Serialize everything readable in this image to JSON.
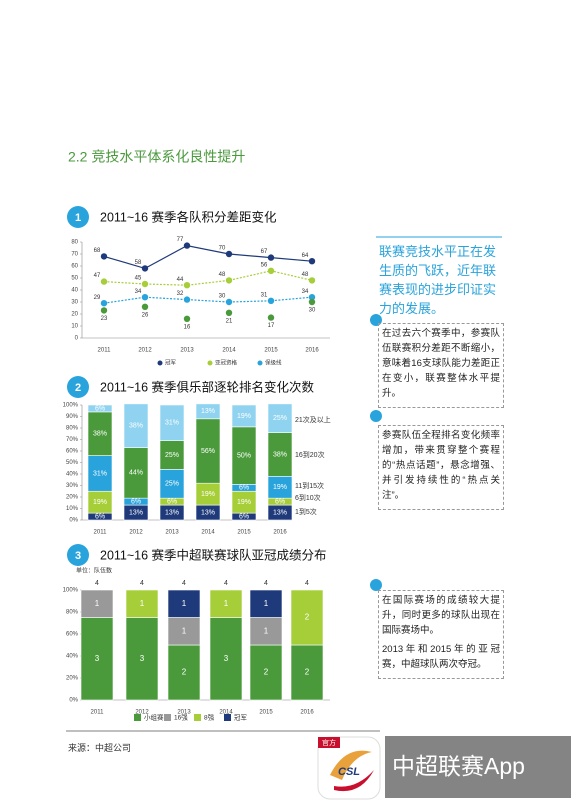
{
  "section_title": "2.2 竞技水平体系化良性提升",
  "charts": [
    {
      "type": "line",
      "badge": "1",
      "title": "2011~16 赛季各队积分差距变化",
      "categories": [
        "2011",
        "2012",
        "2013",
        "2014",
        "2015",
        "2016"
      ],
      "series": [
        {
          "name": "冠军",
          "color": "#1f3a7a",
          "values": [
            68,
            58,
            77,
            70,
            67,
            64
          ]
        },
        {
          "name": "亚冠资格",
          "color": "#a6ce39",
          "values": [
            47,
            45,
            44,
            48,
            56,
            48
          ]
        },
        {
          "name": "保级线",
          "color": "#29a3dc",
          "values": [
            29,
            34,
            32,
            30,
            31,
            34
          ]
        }
      ],
      "last_place": [
        23,
        26,
        16,
        21,
        17,
        30
      ],
      "ylim": [
        0,
        80
      ],
      "yticks": [
        0,
        10,
        20,
        30,
        40,
        50,
        60,
        70,
        80
      ]
    },
    {
      "type": "stacked_bar",
      "badge": "2",
      "title": "2011~16 赛季俱乐部逐轮排名变化次数",
      "categories": [
        "2011",
        "2012",
        "2013",
        "2014",
        "2015",
        "2016"
      ],
      "series": [
        {
          "name": "1到5次",
          "color": "#1f3a7a",
          "values": [
            6,
            13,
            13,
            13,
            6,
            13
          ],
          "value_labels": [
            "6%",
            "13%",
            "13%",
            "13%",
            "6%",
            "13%"
          ]
        },
        {
          "name": "6到10次",
          "color": "#a6ce39",
          "values": [
            19,
            null,
            6,
            19,
            19,
            6
          ],
          "value_labels": [
            "19%",
            null,
            "6%",
            "19%",
            "19%",
            "6%"
          ]
        },
        {
          "name": "11到15次",
          "color": "#29a3dc",
          "values": [
            31,
            6,
            25,
            null,
            6,
            19
          ],
          "value_labels": [
            "31%",
            "6%",
            "25%",
            null,
            "6%",
            "19%"
          ]
        },
        {
          "name": "16到20次",
          "color": "#4a9a3c",
          "values": [
            38,
            44,
            25,
            56,
            50,
            38
          ],
          "value_labels": [
            "38%",
            "44%",
            "25%",
            "56%",
            "50%",
            "38%"
          ]
        },
        {
          "name": "21次及以上",
          "color": "#8fd3f0",
          "values": [
            6,
            38,
            31,
            13,
            19,
            25
          ],
          "value_labels": [
            "6%",
            "38%",
            "31%",
            "13%",
            "19%",
            "25%"
          ]
        }
      ],
      "ylim": [
        0,
        100
      ],
      "yticks": [
        {
          "value": 0,
          "label": "0%"
        },
        {
          "value": 10,
          "label": "10%"
        },
        {
          "value": 20,
          "label": "20%"
        },
        {
          "value": 30,
          "label": "30%"
        },
        {
          "value": 40,
          "label": "40%"
        },
        {
          "value": 50,
          "label": "50%"
        },
        {
          "value": 60,
          "label": "60%"
        },
        {
          "value": 70,
          "label": "70%"
        },
        {
          "value": 80,
          "label": "80%"
        },
        {
          "value": 90,
          "label": "90%"
        },
        {
          "value": 100,
          "label": "100%"
        }
      ]
    },
    {
      "type": "stacked_bar",
      "badge": "3",
      "title": "2011~16 赛季中超联赛球队亚冠成绩分布",
      "unit": "单位：队伍数",
      "categories": [
        "2011",
        "2012",
        "2013",
        "2014",
        "2015",
        "2016"
      ],
      "series": [
        {
          "name": "小组赛",
          "color": "#4a9a3c",
          "values": [
            3,
            3,
            2,
            3,
            2,
            2
          ]
        },
        {
          "name": "16强",
          "color": "#999999",
          "values": [
            1,
            null,
            1,
            null,
            1,
            null
          ]
        },
        {
          "name": "8强",
          "color": "#a6ce39",
          "values": [
            null,
            1,
            null,
            1,
            null,
            2
          ]
        },
        {
          "name": "冠军",
          "color": "#1f3a7a",
          "values": [
            null,
            null,
            1,
            null,
            1,
            null
          ]
        }
      ],
      "totals": [
        4,
        4,
        4,
        4,
        4,
        4
      ],
      "ylim": [
        0,
        4
      ],
      "yticks": [
        {
          "value": 0,
          "label": "0%"
        },
        {
          "value": 0.8,
          "label": "20%"
        },
        {
          "value": 1.6,
          "label": "40%"
        },
        {
          "value": 2.4,
          "label": "60%"
        },
        {
          "value": 3.2,
          "label": "80%"
        },
        {
          "value": 4,
          "label": "100%"
        }
      ]
    }
  ],
  "sidebar": {
    "lead": "联赛竞技水平正在发生质的飞跃，近年联赛表现的进步印证实力的发展。",
    "notes": [
      [
        "在过去六个赛季中，参赛队伍联赛积分差距不断缩小，意味着16支球队能力差距正在变小，联赛整体水平提升。"
      ],
      [
        "参赛队伍全程排名变化频率增加，带来贯穿整个赛程的“热点话题”，悬念增强、并引发持续性的“热点关注”。"
      ],
      [
        "在国际赛场的成绩较大提升，同时更多的球队出现在国际赛场中。",
        "2013年和2015年的亚冠赛，中超球队两次夺冠。"
      ]
    ]
  },
  "source": "来源：中超公司",
  "watermark": {
    "badge": "官方",
    "logo": "CSL",
    "text": "中超联赛App"
  }
}
